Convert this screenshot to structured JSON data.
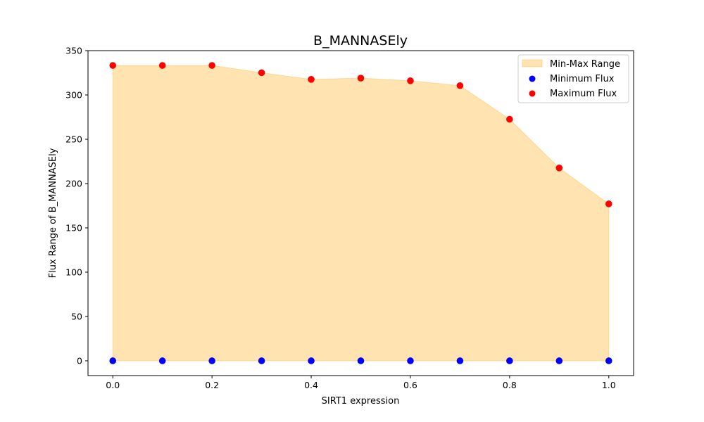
{
  "chart_data": {
    "type": "area",
    "title": "B_MANNASEly",
    "xlabel": "SIRT1 expression",
    "ylabel": "Flux Range of B_MANNASEly",
    "x": [
      0.0,
      0.1,
      0.2,
      0.3,
      0.4,
      0.5,
      0.6,
      0.7,
      0.8,
      0.9,
      1.0
    ],
    "xticks": [
      "0.0",
      "0.2",
      "0.4",
      "0.6",
      "0.8",
      "1.0"
    ],
    "yticks": [
      "0",
      "50",
      "100",
      "150",
      "200",
      "250",
      "300",
      "350"
    ],
    "xlim": [
      -0.05,
      1.05
    ],
    "ylim": [
      -16.7,
      350
    ],
    "grid": false,
    "legend_position": "top-right",
    "series": [
      {
        "name": "Min-Max Range",
        "kind": "fill",
        "color": "#ffa500"
      },
      {
        "name": "Minimum Flux",
        "kind": "scatter",
        "color": "#0000ff",
        "values": [
          0,
          0,
          0,
          0,
          0,
          0,
          0,
          0,
          0,
          0,
          0
        ]
      },
      {
        "name": "Maximum Flux",
        "kind": "scatter",
        "color": "#ff0000",
        "values": [
          333.3,
          333.3,
          333.3,
          325.1,
          317.6,
          319.0,
          316.0,
          310.5,
          272.6,
          217.6,
          177.1
        ]
      }
    ]
  }
}
